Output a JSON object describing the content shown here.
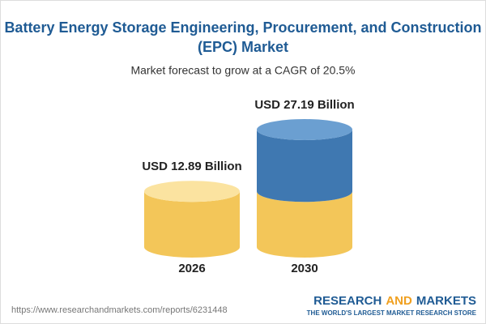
{
  "chart_data": {
    "type": "cylinder",
    "title": [
      "Battery Energy Storage Engineering, Procurement, and Construction",
      "(EPC) Market"
    ],
    "subtitle": "Market forecast to grow at a CAGR of 20.5%",
    "categories": [
      "2026",
      "2030"
    ],
    "values": [
      12.89,
      27.19
    ],
    "value_labels": [
      "USD 12.89 Billion",
      "USD 27.19 Billion"
    ],
    "colors": {
      "base": "#f3c659",
      "base_top": "#fbe3a0",
      "growth": "#3f78b1",
      "growth_top": "#6b9fd1"
    }
  },
  "footer": {
    "url": "https://www.researchandmarkets.com/reports/6231448",
    "brand": [
      "RESEARCH",
      "AND",
      "MARKETS"
    ],
    "tagline": "THE WORLD'S LARGEST MARKET RESEARCH STORE"
  }
}
